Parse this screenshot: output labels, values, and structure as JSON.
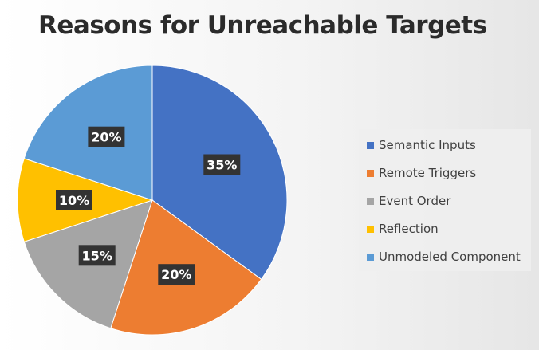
{
  "chart_data": {
    "type": "pie",
    "title": "Reasons for Unreachable Targets",
    "legend_position": "right",
    "categories": [
      "Semantic Inputs",
      "Remote Triggers",
      "Event Order",
      "Reflection",
      "Unmodeled Component"
    ],
    "values": [
      35,
      20,
      15,
      10,
      20
    ],
    "data_labels": [
      "35%",
      "20%",
      "15%",
      "10%",
      "20%"
    ],
    "colors": [
      "#4472C4",
      "#ED7D31",
      "#A5A5A5",
      "#FFC000",
      "#5B9BD5"
    ]
  }
}
